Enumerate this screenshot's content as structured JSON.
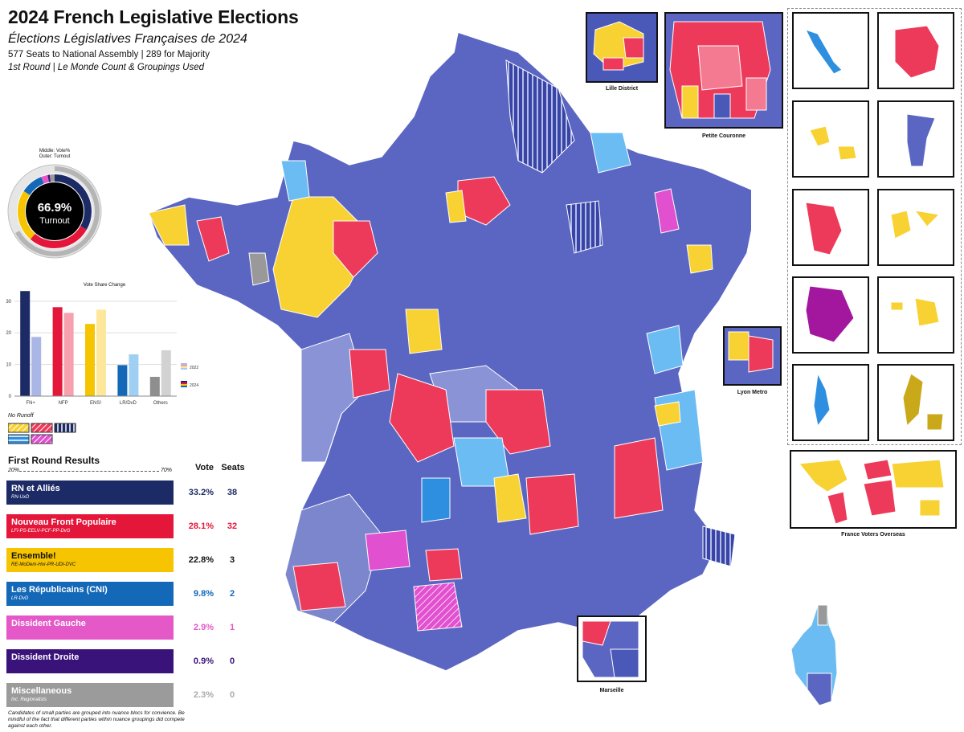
{
  "header": {
    "title": "2024 French Legislative Elections",
    "subtitle": "Élections Législatives Françaises de 2024",
    "info_line1": "577 Seats to National Assembly | 289 for Majority",
    "info_line2": "1st Round | Le Monde Count & Groupings Used"
  },
  "turnout": {
    "legend_line1": "Middle: Vote%",
    "legend_line2": "Outer: Turnout",
    "value": "66.9%",
    "label": "Turnout",
    "turnout_fraction": 0.669
  },
  "chart_data": {
    "type": "bar",
    "title": "Vote Share Change",
    "categories": [
      "FN+",
      "NFP",
      "ENS!",
      "LR/DvD",
      "Others"
    ],
    "series": [
      {
        "name": "2022",
        "values": [
          18.7,
          26.3,
          27.3,
          13.2,
          14.5
        ]
      },
      {
        "name": "2024",
        "values": [
          33.2,
          28.1,
          22.8,
          9.8,
          6.1
        ]
      }
    ],
    "yticks": [
      "0",
      "10",
      "20",
      "30"
    ],
    "ylim": [
      0,
      33
    ],
    "legend_position": "right",
    "colors": {
      "FN+": [
        "#1c2a66",
        "#a9b6e6"
      ],
      "NFP": [
        "#e4173a",
        "#f6a1ad"
      ],
      "ENS!": [
        "#f6c400",
        "#fde79a"
      ],
      "LR/DvD": [
        "#1468b8",
        "#9fd0f3"
      ],
      "Others": [
        "#8e8e8e",
        "#d2d2d2"
      ]
    }
  },
  "no_runoff": {
    "label": "No Runoff"
  },
  "results": {
    "heading": "First Round Results",
    "col_vote": "Vote",
    "col_seats": "Seats",
    "scale_left": "20%",
    "scale_right": "70%",
    "parties": [
      {
        "name": "RN et Alliés",
        "sub": "RN-UxD",
        "vote": "33.2%",
        "seats": "38",
        "color": "#1c2a66",
        "text_color": "#ffffff",
        "num_color": "#1c2a66",
        "share": 0.332
      },
      {
        "name": "Nouveau Front Populaire",
        "sub": "LFI-PS-EELV-PCF-PP-DvG",
        "vote": "28.1%",
        "seats": "32",
        "color": "#e4173a",
        "text_color": "#ffffff",
        "num_color": "#e4173a",
        "share": 0.281
      },
      {
        "name": "Ensemble!",
        "sub": "RE-MoDem-Hor-PR-UDI-DVC",
        "vote": "22.8%",
        "seats": "3",
        "color": "#f6c400",
        "text_color": "#111111",
        "num_color": "#111111",
        "share": 0.228
      },
      {
        "name": "Les Républicains (CNI)",
        "sub": "LR-DvD",
        "vote": "9.8%",
        "seats": "2",
        "color": "#1468b8",
        "text_color": "#ffffff",
        "num_color": "#1468b8",
        "share": 0.098
      },
      {
        "name": "Dissident Gauche",
        "sub": "",
        "vote": "2.9%",
        "seats": "1",
        "color": "#e458c8",
        "text_color": "#ffffff",
        "num_color": "#e458c8",
        "share": 0.029
      },
      {
        "name": "Dissident Droite",
        "sub": "",
        "vote": "0.9%",
        "seats": "0",
        "color": "#3a137a",
        "text_color": "#ffffff",
        "num_color": "#3a137a",
        "share": 0.009
      },
      {
        "name": "Miscellaneous",
        "sub": "Inc. Regionalists",
        "vote": "2.3%",
        "seats": "0",
        "color": "#9b9b9b",
        "text_color": "#ffffff",
        "num_color": "#aaaaaa",
        "share": 0.023
      }
    ],
    "footnote": "Candidates of small parties are grouped into nuance blocs for convience. Be mindful of the fact that different parties within nuance groupings did compete against each other."
  },
  "insets": {
    "lille": "Lille District",
    "petite_couronne": "Petite Couronne",
    "lyon": "Lyon Metro",
    "marseille": "Marseille",
    "overseas_voters": "France Voters Overseas"
  },
  "map_colors": {
    "rn": "#4a58b8",
    "rn_light": "#7b86cc",
    "nfp": "#ee3a5a",
    "nfp_light": "#f37a90",
    "ens": "#f8d232",
    "lr": "#2e8fe0",
    "lr_light": "#6bbcf2",
    "dvg": "#e050cf",
    "misc": "#999999",
    "region_guy": "#a3179e"
  }
}
